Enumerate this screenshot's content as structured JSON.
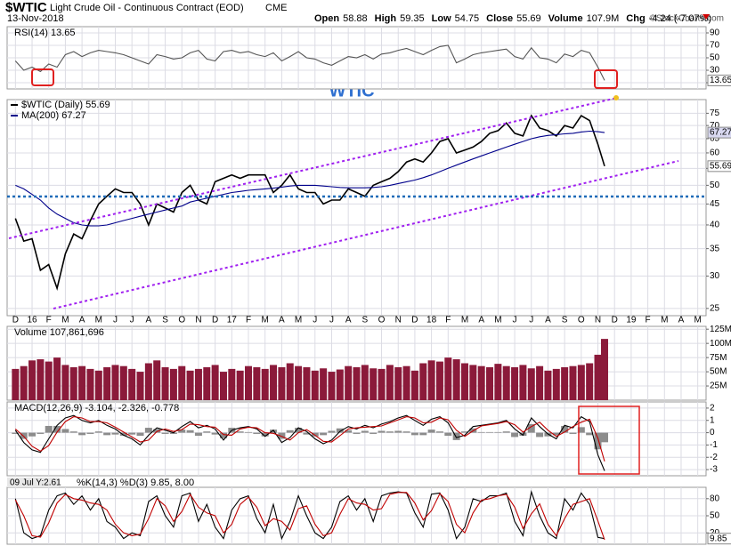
{
  "header": {
    "symbol": "$WTIC",
    "name": "Light Crude Oil - Continuous Contract (EOD)",
    "exchange": "CME",
    "date": "13-Nov-2018",
    "quote": [
      {
        "label": "Open",
        "value": "58.88"
      },
      {
        "label": "High",
        "value": "59.35"
      },
      {
        "label": "Low",
        "value": "54.75"
      },
      {
        "label": "Close",
        "value": "55.69"
      },
      {
        "label": "Volume",
        "value": "107.9M"
      },
      {
        "label": "Chg",
        "value": "-4.24 (-7.07%)"
      }
    ],
    "watermark": "©StockCharts.com",
    "annotation": "WTIC"
  },
  "chart_data": [
    {
      "type": "line",
      "title": "RSI(14) 13.65",
      "ylim": [
        0,
        100
      ],
      "yticks": [
        10,
        30,
        50,
        70,
        90
      ],
      "series": [
        {
          "color": "#555555",
          "values": [
            45,
            30,
            35,
            28,
            40,
            35,
            55,
            60,
            52,
            58,
            62,
            60,
            58,
            55,
            50,
            45,
            40,
            55,
            52,
            48,
            50,
            58,
            62,
            48,
            45,
            60,
            62,
            58,
            60,
            55,
            52,
            58,
            45,
            52,
            60,
            50,
            48,
            42,
            38,
            45,
            52,
            50,
            55,
            48,
            56,
            58,
            62,
            65,
            60,
            55,
            62,
            68,
            70,
            42,
            48,
            55,
            58,
            60,
            62,
            64,
            52,
            48,
            66,
            50,
            48,
            42,
            56,
            52,
            62,
            58,
            35,
            13.65
          ]
        }
      ]
    },
    {
      "type": "line",
      "log_scale": true,
      "grid": true,
      "ylim": [
        24,
        81
      ],
      "yticks": [
        25,
        30,
        35,
        40,
        45,
        50,
        55,
        60,
        65,
        70,
        75
      ],
      "xlim": [
        -0.5,
        41.5
      ],
      "xticks": [
        {
          "value": 0,
          "label": "D"
        },
        {
          "value": 1,
          "label": "16"
        },
        {
          "value": 2,
          "label": "F"
        },
        {
          "value": 3,
          "label": "M"
        },
        {
          "value": 4,
          "label": "A"
        },
        {
          "value": 5,
          "label": "M"
        },
        {
          "value": 6,
          "label": "J"
        },
        {
          "value": 7,
          "label": "J"
        },
        {
          "value": 8,
          "label": "A"
        },
        {
          "value": 9,
          "label": "S"
        },
        {
          "value": 10,
          "label": "O"
        },
        {
          "value": 11,
          "label": "N"
        },
        {
          "value": 12,
          "label": "D"
        },
        {
          "value": 13,
          "label": "17"
        },
        {
          "value": 14,
          "label": "F"
        },
        {
          "value": 15,
          "label": "M"
        },
        {
          "value": 16,
          "label": "A"
        },
        {
          "value": 17,
          "label": "M"
        },
        {
          "value": 18,
          "label": "J"
        },
        {
          "value": 19,
          "label": "J"
        },
        {
          "value": 20,
          "label": "A"
        },
        {
          "value": 21,
          "label": "S"
        },
        {
          "value": 22,
          "label": "O"
        },
        {
          "value": 23,
          "label": "N"
        },
        {
          "value": 24,
          "label": "D"
        },
        {
          "value": 25,
          "label": "18"
        },
        {
          "value": 26,
          "label": "F"
        },
        {
          "value": 27,
          "label": "M"
        },
        {
          "value": 28,
          "label": "A"
        },
        {
          "value": 29,
          "label": "M"
        },
        {
          "value": 30,
          "label": "J"
        },
        {
          "value": 31,
          "label": "J"
        },
        {
          "value": 32,
          "label": "A"
        },
        {
          "value": 33,
          "label": "S"
        },
        {
          "value": 34,
          "label": "O"
        },
        {
          "value": 35,
          "label": "N"
        },
        {
          "value": 36,
          "label": "D"
        },
        {
          "value": 37,
          "label": "19"
        },
        {
          "value": 38,
          "label": "F"
        },
        {
          "value": 39,
          "label": "M"
        },
        {
          "value": 40,
          "label": "A"
        },
        {
          "value": 41,
          "label": "M"
        }
      ],
      "x": [
        0,
        0.5,
        1,
        1.5,
        2,
        2.5,
        3,
        3.5,
        4,
        4.5,
        5,
        5.5,
        6,
        6.5,
        7,
        7.5,
        8,
        8.5,
        9,
        9.5,
        10,
        10.5,
        11,
        11.5,
        12,
        12.5,
        13,
        13.5,
        14,
        14.5,
        15,
        15.5,
        16,
        16.5,
        17,
        17.5,
        18,
        18.5,
        19,
        19.5,
        20,
        20.5,
        21,
        21.5,
        22,
        22.5,
        23,
        23.5,
        24,
        24.5,
        25,
        25.5,
        26,
        26.5,
        27,
        27.5,
        28,
        28.5,
        29,
        29.5,
        30,
        30.5,
        31,
        31.5,
        32,
        32.5,
        33,
        33.5,
        34,
        34.5,
        35,
        35.4
      ],
      "series": [
        {
          "name": "$WTIC (Daily) 55.69",
          "color": "#000000",
          "values": [
            41.5,
            36.5,
            37,
            31,
            32,
            28,
            34,
            38,
            37,
            41,
            45,
            47,
            49,
            48,
            48,
            45,
            40,
            45,
            44,
            43,
            48,
            50,
            46,
            45,
            51,
            52,
            53,
            52,
            53,
            53,
            53,
            48,
            50,
            53,
            49,
            48,
            48,
            45,
            46,
            46,
            49,
            48,
            47,
            50,
            51,
            52,
            54,
            57,
            58,
            57,
            60,
            64,
            65,
            60,
            61,
            62,
            64,
            67,
            68,
            71,
            67,
            66,
            74,
            69,
            68,
            66,
            70,
            69,
            74,
            72,
            63,
            55.69
          ]
        },
        {
          "name": "MA(200) 67.27",
          "color": "#00008b",
          "values": [
            50,
            49,
            47.5,
            46,
            44,
            42.5,
            41.5,
            40.5,
            40,
            39.8,
            39.8,
            40,
            40.5,
            41,
            41.5,
            42,
            42.5,
            43,
            43.5,
            44,
            44.5,
            45.5,
            46,
            46.5,
            47,
            47.5,
            48,
            48.3,
            48.6,
            48.8,
            49,
            49.2,
            49.5,
            49.8,
            50,
            50,
            50,
            49.8,
            49.6,
            49.4,
            49.3,
            49.3,
            49.3,
            49.4,
            49.6,
            50,
            50.5,
            51,
            51.5,
            52.2,
            53,
            54,
            55,
            56,
            57,
            58,
            59,
            60,
            61,
            62,
            63,
            64,
            65,
            65.7,
            66.2,
            66.5,
            66.8,
            67,
            67.5,
            67.8,
            67.6,
            67.27
          ]
        }
      ]
    },
    {
      "type": "bar",
      "title": "Volume 107,861,696",
      "ylim": [
        0,
        130
      ],
      "yticks": [
        {
          "value": 25,
          "label": "25M"
        },
        {
          "value": 50,
          "label": "50M"
        },
        {
          "value": 75,
          "label": "75M"
        },
        {
          "value": 100,
          "label": "100M"
        },
        {
          "value": 125,
          "label": "125M"
        }
      ],
      "series": [
        {
          "color": "#8b1a3a",
          "values": [
            55,
            60,
            70,
            72,
            68,
            75,
            62,
            58,
            60,
            55,
            52,
            58,
            62,
            60,
            55,
            50,
            65,
            70,
            58,
            55,
            60,
            52,
            55,
            58,
            62,
            50,
            55,
            52,
            60,
            58,
            55,
            62,
            58,
            65,
            60,
            58,
            52,
            56,
            50,
            54,
            60,
            58,
            62,
            56,
            55,
            62,
            58,
            60,
            52,
            65,
            70,
            68,
            75,
            72,
            65,
            62,
            60,
            58,
            64,
            60,
            58,
            62,
            56,
            60,
            52,
            55,
            58,
            60,
            62,
            65,
            80,
            107.86
          ]
        }
      ]
    },
    {
      "type": "line",
      "title": "MACD(12,26,9) -3.104, -2.326, -0.778",
      "ylim": [
        -3.5,
        2.5
      ],
      "yticks": [
        -3,
        -2,
        -1,
        0,
        1,
        2
      ],
      "series": [
        {
          "type": "bar",
          "color": "#8c8c8c",
          "values": [
            -0.1,
            -0.5,
            -0.3,
            -0.1,
            0.55,
            0.55,
            0.3,
            0.1,
            -0.2,
            -0.1,
            0.1,
            -0.2,
            -0.15,
            -0.25,
            -0.15,
            -0.25,
            0.4,
            0.3,
            -0.1,
            -0.1,
            0.25,
            0.2,
            -0.25,
            0.1,
            -0.15,
            -0.45,
            0.4,
            0.1,
            0.05,
            -0.1,
            -0.3,
            0.25,
            -0.5,
            0.2,
            0.4,
            -0.15,
            -0.3,
            -0.2,
            0.15,
            0.35,
            0.2,
            -0.1,
            0.15,
            -0.1,
            0.15,
            0.1,
            0.15,
            0.1,
            -0.2,
            -0.2,
            0.25,
            0.1,
            -0.25,
            -0.6,
            0.1,
            0.35,
            0.05,
            0.05,
            0.05,
            0.1,
            -0.35,
            -0.25,
            0.7,
            -0.35,
            -0.3,
            -0.2,
            0.55,
            -0.1,
            0.45,
            -0.2,
            -1.35,
            -0.778
          ]
        },
        {
          "color": "#000000",
          "values": [
            0.2,
            -0.8,
            -1.4,
            -1.6,
            -0.5,
            0.6,
            1.2,
            1.4,
            1.0,
            0.8,
            1.0,
            0.6,
            0.3,
            -0.2,
            -0.5,
            -1.0,
            -0.2,
            0.4,
            0.2,
            0.0,
            0.5,
            0.9,
            0.4,
            0.6,
            0.3,
            -0.6,
            0.2,
            0.4,
            0.5,
            0.3,
            -0.3,
            0.2,
            -0.8,
            -0.4,
            0.4,
            0.1,
            -0.5,
            -0.9,
            -0.6,
            0.1,
            0.5,
            0.3,
            0.6,
            0.4,
            0.7,
            0.9,
            1.2,
            1.4,
            1.0,
            0.6,
            1.1,
            1.3,
            0.8,
            -0.4,
            -0.2,
            0.5,
            0.6,
            0.7,
            0.8,
            1.0,
            0.3,
            -0.2,
            1.2,
            0.5,
            -0.1,
            -0.5,
            0.6,
            0.4,
            1.3,
            0.9,
            -1.8,
            -3.104
          ]
        },
        {
          "color": "#c00000",
          "values": [
            0.3,
            -0.3,
            -1.1,
            -1.5,
            -1.05,
            0.05,
            0.9,
            1.3,
            1.2,
            0.9,
            0.9,
            0.8,
            0.45,
            0.05,
            -0.35,
            -0.75,
            -0.6,
            0.1,
            0.3,
            0.1,
            0.25,
            0.7,
            0.65,
            0.5,
            0.45,
            -0.15,
            -0.2,
            0.3,
            0.45,
            0.4,
            0,
            -0.05,
            -0.3,
            -0.6,
            0,
            0.25,
            -0.2,
            -0.7,
            -0.75,
            -0.25,
            0.3,
            0.4,
            0.45,
            0.5,
            0.55,
            0.8,
            1.05,
            1.3,
            1.2,
            0.8,
            0.85,
            1.2,
            1.05,
            0.2,
            -0.3,
            0.15,
            0.55,
            0.65,
            0.75,
            0.9,
            0.65,
            0.05,
            0.5,
            0.85,
            0.2,
            -0.3,
            0.05,
            0.5,
            0.85,
            1.1,
            -0.45,
            -2.326
          ]
        }
      ]
    },
    {
      "type": "line",
      "title": "%K(14,3) %D(3) 9.85, 8.00",
      "annotation": "09 Jul Y:2.61",
      "ylim": [
        0,
        100
      ],
      "yticks": [
        20,
        50,
        80
      ],
      "series": [
        {
          "color": "#000000",
          "values": [
            80,
            20,
            10,
            15,
            60,
            85,
            90,
            70,
            85,
            60,
            80,
            40,
            30,
            10,
            20,
            15,
            75,
            85,
            50,
            30,
            85,
            90,
            40,
            70,
            30,
            10,
            60,
            80,
            85,
            45,
            20,
            70,
            10,
            40,
            85,
            50,
            20,
            10,
            30,
            75,
            85,
            60,
            80,
            40,
            85,
            90,
            92,
            90,
            55,
            30,
            88,
            90,
            60,
            10,
            30,
            80,
            75,
            85,
            85,
            90,
            40,
            15,
            92,
            50,
            20,
            10,
            80,
            60,
            90,
            70,
            12,
            9.85
          ]
        },
        {
          "color": "#c00000",
          "values": [
            78,
            50,
            15,
            12.5,
            37.5,
            72.5,
            87.5,
            80,
            77.5,
            72.5,
            70,
            60,
            35,
            20,
            15,
            17.5,
            45,
            80,
            67.5,
            40,
            57.5,
            87.5,
            65,
            55,
            50,
            20,
            35,
            70,
            82.5,
            65,
            32.5,
            45,
            40,
            25,
            62.5,
            67.5,
            35,
            15,
            20,
            52.5,
            80,
            72.5,
            70,
            60,
            62.5,
            87.5,
            91,
            91,
            72.5,
            42.5,
            59,
            89,
            75,
            35,
            20,
            55,
            77.5,
            80,
            85,
            87.5,
            65,
            27.5,
            53.5,
            71,
            35,
            15,
            45,
            70,
            75,
            80,
            41,
            8.0
          ]
        }
      ]
    }
  ]
}
